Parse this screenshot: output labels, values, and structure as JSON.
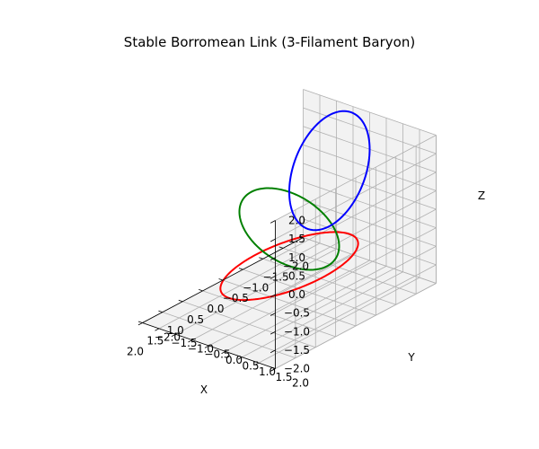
{
  "chart_data": {
    "type": "line",
    "projection": "3d",
    "title": "Stable Borromean Link (3-Filament Baryon)",
    "xlabel": "X",
    "ylabel": "Y",
    "zlabel": "Z",
    "xlim": [
      -2.0,
      2.0
    ],
    "ylim": [
      -2.0,
      2.0
    ],
    "zlim": [
      -2.0,
      2.0
    ],
    "xticks": [
      -2.0,
      -1.5,
      -1.0,
      -0.5,
      0.0,
      0.5,
      1.0,
      1.5,
      2.0
    ],
    "yticks": [
      -2.0,
      -1.5,
      -1.0,
      -0.5,
      0.0,
      0.5,
      1.0,
      1.5,
      2.0
    ],
    "zticks": [
      -2.0,
      -1.5,
      -1.0,
      -0.5,
      0.0,
      0.5,
      1.0,
      1.5,
      2.0
    ],
    "xtick_labels": [
      "−2.0",
      "−1.5",
      "−1.0",
      "−0.5",
      "0.0",
      "0.5",
      "1.0",
      "1.5",
      "2.0"
    ],
    "ytick_labels": [
      "−2.0",
      "−1.5",
      "−1.0",
      "−0.5",
      "0.0",
      "0.5",
      "1.0",
      "1.5",
      "2.0"
    ],
    "ztick_labels": [
      "−2.0",
      "−1.5",
      "−1.0",
      "−0.5",
      "0.0",
      "0.5",
      "1.0",
      "1.5",
      "2.0"
    ],
    "grid": true,
    "series": [
      {
        "shape": "ellipse",
        "plane": "xy",
        "center": [
          0,
          0,
          -1
        ],
        "semi_axes": [
          1.5,
          1.0
        ],
        "color": "#ff0000"
      },
      {
        "shape": "ellipse",
        "plane": "yz",
        "center": [
          0,
          0,
          0
        ],
        "semi_axes": [
          1.5,
          1.0
        ],
        "color": "#008000"
      },
      {
        "shape": "ellipse",
        "plane": "zx",
        "center": [
          -1,
          0,
          1
        ],
        "semi_axes": [
          1.5,
          1.0
        ],
        "color": "#0000ff"
      }
    ],
    "colors": {
      "pane": "#f2f2f2",
      "grid": "#b0b0b0",
      "axis": "#000000"
    }
  }
}
